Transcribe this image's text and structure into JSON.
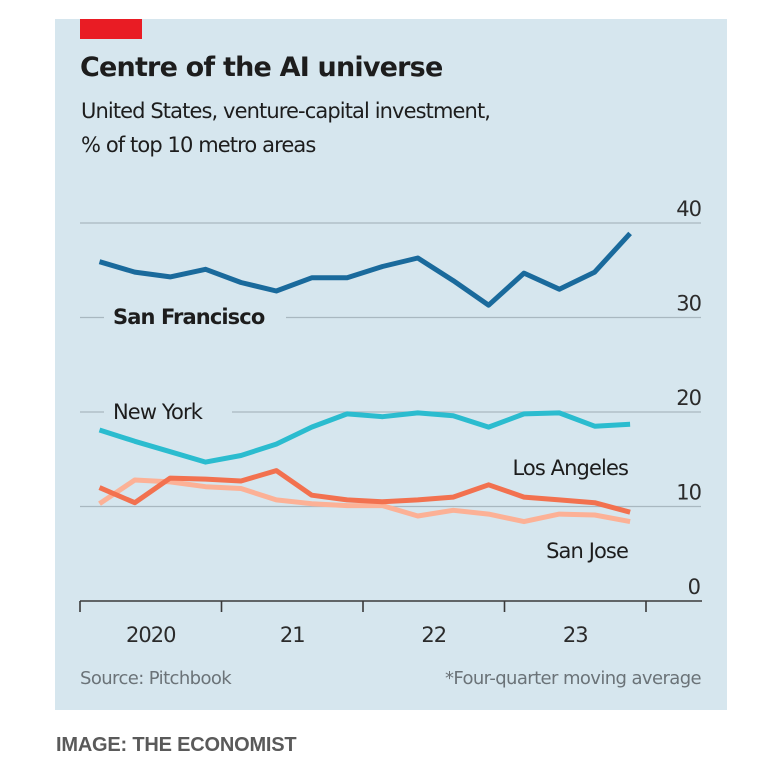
{
  "header": {
    "title": "Centre of the AI universe",
    "subtitle_line1": "United States, venture-capital investment,",
    "subtitle_line2": "% of top 10 metro areas"
  },
  "footer": {
    "source": "Source: Pitchbook",
    "note": "*Four-quarter moving average",
    "credit": "IMAGE: THE ECONOMIST"
  },
  "chart_data": {
    "type": "line",
    "title": "Centre of the AI universe",
    "subtitle": "United States, venture-capital investment, % of top 10 metro areas",
    "xlabel": "",
    "ylabel": "% of top 10 metro areas",
    "x": [
      "2020Q1",
      "2020Q2",
      "2020Q3",
      "2020Q4",
      "2021Q1",
      "2021Q2",
      "2021Q3",
      "2021Q4",
      "2022Q1",
      "2022Q2",
      "2022Q3",
      "2022Q4",
      "2023Q1",
      "2023Q2",
      "2023Q3",
      "2023Q4"
    ],
    "x_tick_labels": [
      "2020",
      "21",
      "22",
      "23"
    ],
    "y_ticks": [
      0,
      10,
      20,
      30,
      40
    ],
    "ylim": [
      0,
      40
    ],
    "grid": true,
    "y_axis_side": "right",
    "series": [
      {
        "name": "San Francisco",
        "color": "#1a6a9c",
        "label_bold": true,
        "values": [
          35.9,
          34.8,
          34.3,
          35.1,
          33.7,
          32.8,
          34.2,
          34.2,
          35.4,
          36.3,
          33.9,
          31.3,
          34.7,
          33.0,
          34.8,
          38.9
        ]
      },
      {
        "name": "New York",
        "color": "#2bbccf",
        "label_bold": false,
        "values": [
          18.1,
          16.9,
          15.8,
          14.7,
          15.4,
          16.6,
          18.4,
          19.8,
          19.5,
          19.9,
          19.6,
          18.4,
          19.8,
          19.9,
          18.5,
          18.7
        ]
      },
      {
        "name": "Los Angeles",
        "color": "#f2714f",
        "label_bold": false,
        "values": [
          12.0,
          10.4,
          13.0,
          12.9,
          12.7,
          13.8,
          11.2,
          10.7,
          10.5,
          10.7,
          11.0,
          12.3,
          11.0,
          10.7,
          10.4,
          9.4
        ]
      },
      {
        "name": "San Jose",
        "color": "#fcb196",
        "label_bold": false,
        "values": [
          10.3,
          12.8,
          12.6,
          12.1,
          11.9,
          10.7,
          10.3,
          10.1,
          10.1,
          9.0,
          9.6,
          9.2,
          8.4,
          9.2,
          9.1,
          8.4
        ]
      }
    ],
    "source": "Source: Pitchbook",
    "note": "*Four-quarter moving average"
  }
}
